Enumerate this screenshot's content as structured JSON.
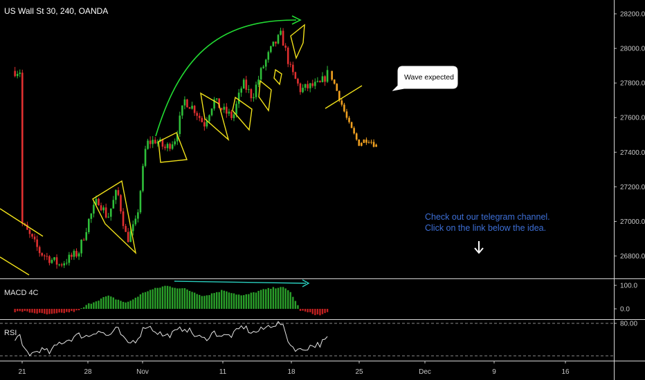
{
  "header": {
    "title": "US Wall St 30, 240, OANDA"
  },
  "colors": {
    "background": "#000000",
    "up": "#2fbf3a",
    "down": "#e03030",
    "projection": "#f0a020",
    "pattern": "#f2e21a",
    "arc": "#22dd33",
    "divergence": "#2ad0c0",
    "macd_pos": "#2aa02a",
    "macd_neg": "#c02020",
    "rsi_line": "#e6e6e6",
    "note": "#3d6fd6"
  },
  "annotations": {
    "bubble": "Wave expected",
    "note_line1": "Check out our telegram channel.",
    "note_line2": "Click on the link below the idea.",
    "arrow_icon": "down-arrow-icon"
  },
  "chart_data": [
    {
      "type": "candlestick",
      "title": "US Wall St 30, 240, OANDA",
      "yticks": [
        26800,
        27000,
        27200,
        27400,
        27600,
        27800,
        28000,
        28200
      ],
      "ylim": [
        26690,
        28270
      ],
      "xticks": [
        "21",
        "28",
        "Nov",
        "11",
        "18",
        "25",
        "Dec",
        "9",
        "16"
      ],
      "anchors": [
        {
          "day": 0,
          "price": 27000
        },
        {
          "day": 2,
          "price": 26820
        },
        {
          "day": 4,
          "price": 26750
        },
        {
          "day": 6,
          "price": 26820
        },
        {
          "day": 7,
          "price": 27000
        },
        {
          "day": 8,
          "price": 27130
        },
        {
          "day": 9,
          "price": 27020
        },
        {
          "day": 10,
          "price": 27180
        },
        {
          "day": 11,
          "price": 26890
        },
        {
          "day": 12,
          "price": 27000
        },
        {
          "day": 13,
          "price": 27450
        },
        {
          "day": 14,
          "price": 27470
        },
        {
          "day": 15,
          "price": 27420
        },
        {
          "day": 16,
          "price": 27480
        },
        {
          "day": 17,
          "price": 27700
        },
        {
          "day": 18,
          "price": 27650
        },
        {
          "day": 19,
          "price": 27560
        },
        {
          "day": 20,
          "price": 27700
        },
        {
          "day": 21,
          "price": 27640
        },
        {
          "day": 22,
          "price": 27600
        },
        {
          "day": 23,
          "price": 27800
        },
        {
          "day": 24,
          "price": 27720
        },
        {
          "day": 25,
          "price": 27880
        },
        {
          "day": 26,
          "price": 28000
        },
        {
          "day": 27,
          "price": 28080
        },
        {
          "day": 28,
          "price": 27870
        },
        {
          "day": 29,
          "price": 27760
        },
        {
          "day": 30,
          "price": 27780
        },
        {
          "day": 31,
          "price": 27790
        },
        {
          "day": 32,
          "price": 27870
        }
      ],
      "projection": {
        "from_day": 32,
        "to_day": 37,
        "points": [
          {
            "day": 32,
            "price": 27870
          },
          {
            "day": 33,
            "price": 27720
          },
          {
            "day": 34,
            "price": 27560
          },
          {
            "day": 35,
            "price": 27450
          },
          {
            "day": 36,
            "price": 27480
          },
          {
            "day": 37,
            "price": 27430
          }
        ]
      }
    },
    {
      "type": "bar",
      "title": "MACD 4C",
      "yticks": [
        0.0,
        100.0
      ],
      "ylim": [
        -25,
        125
      ],
      "anchors": [
        {
          "day": 0,
          "value": -10
        },
        {
          "day": 3,
          "value": -25
        },
        {
          "day": 6,
          "value": -8
        },
        {
          "day": 7,
          "value": 20
        },
        {
          "day": 9,
          "value": 55
        },
        {
          "day": 11,
          "value": 25
        },
        {
          "day": 13,
          "value": 75
        },
        {
          "day": 15,
          "value": 98
        },
        {
          "day": 17,
          "value": 85
        },
        {
          "day": 19,
          "value": 55
        },
        {
          "day": 21,
          "value": 80
        },
        {
          "day": 23,
          "value": 55
        },
        {
          "day": 25,
          "value": 80
        },
        {
          "day": 27,
          "value": 95
        },
        {
          "day": 28,
          "value": 70
        },
        {
          "day": 29,
          "value": -8
        },
        {
          "day": 31,
          "value": -28
        },
        {
          "day": 32,
          "value": -12
        }
      ]
    },
    {
      "type": "line",
      "title": "RSI",
      "yticks": [
        80.0
      ],
      "ylim": [
        25,
        85
      ],
      "levels": [
        80,
        30
      ],
      "anchors": [
        {
          "day": 0,
          "value": 45
        },
        {
          "day": 1,
          "value": 32
        },
        {
          "day": 2,
          "value": 40
        },
        {
          "day": 3,
          "value": 35
        },
        {
          "day": 4,
          "value": 50
        },
        {
          "day": 5,
          "value": 55
        },
        {
          "day": 6,
          "value": 62
        },
        {
          "day": 7,
          "value": 60
        },
        {
          "day": 8,
          "value": 70
        },
        {
          "day": 9,
          "value": 60
        },
        {
          "day": 10,
          "value": 72
        },
        {
          "day": 11,
          "value": 48
        },
        {
          "day": 12,
          "value": 55
        },
        {
          "day": 13,
          "value": 78
        },
        {
          "day": 14,
          "value": 68
        },
        {
          "day": 15,
          "value": 60
        },
        {
          "day": 16,
          "value": 66
        },
        {
          "day": 17,
          "value": 74
        },
        {
          "day": 18,
          "value": 62
        },
        {
          "day": 19,
          "value": 55
        },
        {
          "day": 20,
          "value": 66
        },
        {
          "day": 21,
          "value": 60
        },
        {
          "day": 22,
          "value": 62
        },
        {
          "day": 23,
          "value": 76
        },
        {
          "day": 24,
          "value": 65
        },
        {
          "day": 25,
          "value": 70
        },
        {
          "day": 26,
          "value": 78
        },
        {
          "day": 27,
          "value": 80
        },
        {
          "day": 28,
          "value": 45
        },
        {
          "day": 29,
          "value": 38
        },
        {
          "day": 30,
          "value": 45
        },
        {
          "day": 31,
          "value": 48
        },
        {
          "day": 32,
          "value": 58
        }
      ]
    }
  ]
}
